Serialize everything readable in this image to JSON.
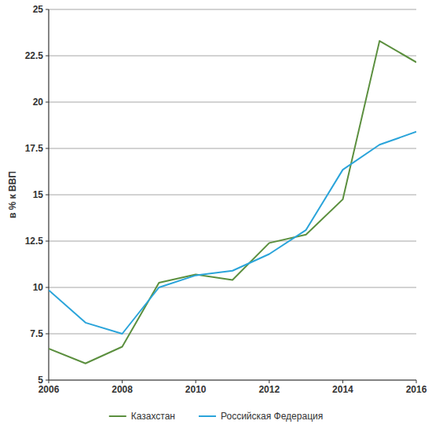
{
  "chart_data": {
    "type": "line",
    "ylabel": "в % к ВВП",
    "x": [
      2006,
      2007,
      2008,
      2009,
      2010,
      2011,
      2012,
      2013,
      2014,
      2015,
      2016
    ],
    "series": [
      {
        "name": "Казахстан",
        "color": "#5b8f3e",
        "values": [
          6.7,
          5.9,
          6.8,
          10.25,
          10.7,
          10.4,
          12.4,
          12.85,
          14.75,
          23.3,
          22.15
        ]
      },
      {
        "name": "Российская Федерация",
        "color": "#2aa4da",
        "values": [
          9.85,
          8.1,
          7.5,
          10.0,
          10.65,
          10.9,
          11.8,
          13.1,
          16.35,
          17.7,
          18.4
        ]
      }
    ],
    "xlim": [
      2006,
      2016
    ],
    "xticks": [
      2006,
      2008,
      2010,
      2012,
      2014,
      2016
    ],
    "ylim": [
      5,
      25
    ],
    "yticks": [
      5,
      7.5,
      10,
      12.5,
      15,
      17.5,
      20,
      22.5,
      25
    ],
    "grid": true,
    "legend": "bottom"
  }
}
